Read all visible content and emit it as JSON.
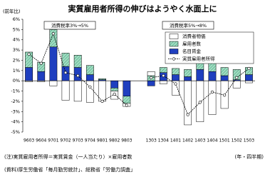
{
  "chart_data": {
    "type": "stacked-bar-line",
    "title": "実質雇用者所得の伸びはようやく水面上に",
    "ylabel": "(前年比)",
    "xlabel": "(年・四半期)",
    "annotations": [
      "消費税率3%→5%",
      "消費税率5%→8%"
    ],
    "notes": [
      "(注)実質雇用者所得＝実質賃金（一人当たり）×雇用者数",
      "(資料)厚生労働省「毎月勤労統計」、総務省「労働力調査」"
    ],
    "categories": [
      "9603",
      "9604",
      "9701",
      "9702",
      "9703",
      "9704",
      "9801",
      "9802",
      "9803",
      null,
      "1303",
      "1304",
      "1401",
      "1402",
      "1403",
      "1404",
      "1501",
      "1502",
      "1503"
    ],
    "series": [
      {
        "name": "名目賃金",
        "color": "#1f3fbf",
        "kind": "bar",
        "values": [
          1.3,
          0.9,
          3.3,
          1.4,
          1.3,
          0.6,
          0.1,
          -0.7,
          -1.5,
          null,
          -0.5,
          0.8,
          0.6,
          0.4,
          1.1,
          0.9,
          0.5,
          0.1,
          0.6
        ]
      },
      {
        "name": "雇用者数",
        "color": "#9fdcc0",
        "kind": "bar",
        "values": [
          1.5,
          0.9,
          1.7,
          1.3,
          1.2,
          0.9,
          0.1,
          -0.3,
          -0.7,
          null,
          0.5,
          0.5,
          0.6,
          0.7,
          0.8,
          1.2,
          0.8,
          1.0,
          0.7
        ]
      },
      {
        "name": "消費者物価",
        "color": "#ffffff",
        "kind": "bar",
        "values": [
          -0.1,
          -0.1,
          -0.5,
          -1.9,
          -2.0,
          -2.1,
          -2.0,
          -0.8,
          -0.3,
          null,
          0.4,
          -0.3,
          -1.4,
          -4.3,
          -4.0,
          -3.3,
          -2.7,
          -0.7,
          -0.2
        ]
      },
      {
        "name": "実質雇用者所得",
        "color": "#000000",
        "kind": "line",
        "values": [
          2.6,
          1.7,
          4.6,
          0.8,
          0.5,
          -0.6,
          -2.0,
          -1.3,
          -2.4,
          null,
          0.3,
          0.5,
          -0.3,
          -3.3,
          -2.1,
          -1.1,
          -1.4,
          0.3,
          1.2
        ]
      }
    ],
    "ylim": [
      -5,
      6
    ],
    "yticks": [
      {
        "value": -5,
        "label": "-5%"
      },
      {
        "value": -4,
        "label": "-4%"
      },
      {
        "value": -3,
        "label": "-3%"
      },
      {
        "value": -2,
        "label": "-2%"
      },
      {
        "value": -1,
        "label": "-1%"
      },
      {
        "value": 0,
        "label": "0%"
      },
      {
        "value": 1,
        "label": "1%"
      },
      {
        "value": 2,
        "label": "2%"
      },
      {
        "value": 3,
        "label": "3%"
      },
      {
        "value": 4,
        "label": "4%"
      },
      {
        "value": 5,
        "label": "5%"
      },
      {
        "value": 6,
        "label": "6%"
      }
    ],
    "grid": false
  }
}
